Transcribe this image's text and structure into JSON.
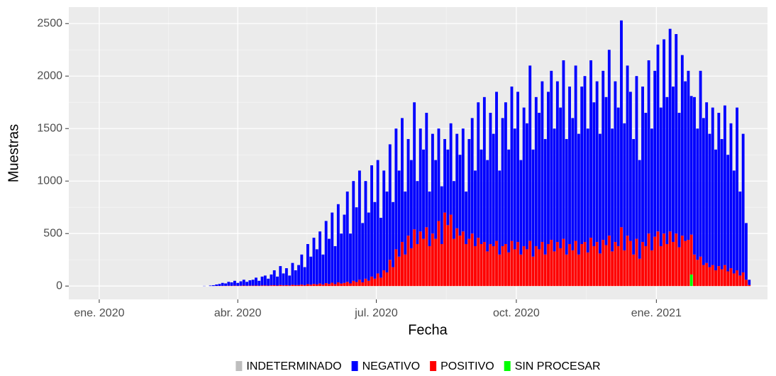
{
  "chart_data": {
    "type": "stacked-bar",
    "x_label": "Fecha",
    "y_label": "Muestras",
    "xlim": [
      "2019-12-12",
      "2021-03-15"
    ],
    "xticks": [
      {
        "value": "2020-01-01",
        "label": "ene. 2020"
      },
      {
        "value": "2020-04-01",
        "label": "abr. 2020"
      },
      {
        "value": "2020-07-01",
        "label": "jul. 2020"
      },
      {
        "value": "2020-10-01",
        "label": "oct. 2020"
      },
      {
        "value": "2021-01-01",
        "label": "ene. 2021"
      }
    ],
    "ylim": [
      -127,
      2657
    ],
    "yticks": [
      0,
      500,
      1000,
      1500,
      2000,
      2500
    ],
    "grid": true,
    "legend": "bottom",
    "x": [
      "2020-03-10",
      "2020-03-12",
      "2020-03-14",
      "2020-03-16",
      "2020-03-18",
      "2020-03-20",
      "2020-03-22",
      "2020-03-24",
      "2020-03-26",
      "2020-03-28",
      "2020-03-30",
      "2020-04-01",
      "2020-04-03",
      "2020-04-05",
      "2020-04-07",
      "2020-04-09",
      "2020-04-11",
      "2020-04-13",
      "2020-04-15",
      "2020-04-17",
      "2020-04-19",
      "2020-04-21",
      "2020-04-23",
      "2020-04-25",
      "2020-04-27",
      "2020-04-29",
      "2020-05-01",
      "2020-05-03",
      "2020-05-05",
      "2020-05-07",
      "2020-05-09",
      "2020-05-11",
      "2020-05-13",
      "2020-05-15",
      "2020-05-17",
      "2020-05-19",
      "2020-05-21",
      "2020-05-23",
      "2020-05-25",
      "2020-05-27",
      "2020-05-29",
      "2020-05-31",
      "2020-06-02",
      "2020-06-04",
      "2020-06-06",
      "2020-06-08",
      "2020-06-10",
      "2020-06-12",
      "2020-06-14",
      "2020-06-16",
      "2020-06-18",
      "2020-06-20",
      "2020-06-22",
      "2020-06-24",
      "2020-06-26",
      "2020-06-28",
      "2020-06-30",
      "2020-07-02",
      "2020-07-04",
      "2020-07-06",
      "2020-07-08",
      "2020-07-10",
      "2020-07-12",
      "2020-07-14",
      "2020-07-16",
      "2020-07-18",
      "2020-07-20",
      "2020-07-22",
      "2020-07-24",
      "2020-07-26",
      "2020-07-28",
      "2020-07-30",
      "2020-08-01",
      "2020-08-03",
      "2020-08-05",
      "2020-08-07",
      "2020-08-09",
      "2020-08-11",
      "2020-08-13",
      "2020-08-15",
      "2020-08-17",
      "2020-08-19",
      "2020-08-21",
      "2020-08-23",
      "2020-08-25",
      "2020-08-27",
      "2020-08-29",
      "2020-08-31",
      "2020-09-02",
      "2020-09-04",
      "2020-09-06",
      "2020-09-08",
      "2020-09-10",
      "2020-09-12",
      "2020-09-14",
      "2020-09-16",
      "2020-09-18",
      "2020-09-20",
      "2020-09-22",
      "2020-09-24",
      "2020-09-26",
      "2020-09-28",
      "2020-09-30",
      "2020-10-02",
      "2020-10-04",
      "2020-10-06",
      "2020-10-08",
      "2020-10-10",
      "2020-10-12",
      "2020-10-14",
      "2020-10-16",
      "2020-10-18",
      "2020-10-20",
      "2020-10-22",
      "2020-10-24",
      "2020-10-26",
      "2020-10-28",
      "2020-10-30",
      "2020-11-01",
      "2020-11-03",
      "2020-11-05",
      "2020-11-07",
      "2020-11-09",
      "2020-11-11",
      "2020-11-13",
      "2020-11-15",
      "2020-11-17",
      "2020-11-19",
      "2020-11-21",
      "2020-11-23",
      "2020-11-25",
      "2020-11-27",
      "2020-11-29",
      "2020-12-01",
      "2020-12-03",
      "2020-12-05",
      "2020-12-07",
      "2020-12-09",
      "2020-12-11",
      "2020-12-13",
      "2020-12-15",
      "2020-12-17",
      "2020-12-19",
      "2020-12-21",
      "2020-12-23",
      "2020-12-25",
      "2020-12-27",
      "2020-12-29",
      "2020-12-31",
      "2021-01-02",
      "2021-01-04",
      "2021-01-06",
      "2021-01-08",
      "2021-01-10",
      "2021-01-12",
      "2021-01-14",
      "2021-01-16",
      "2021-01-18",
      "2021-01-20",
      "2021-01-22",
      "2021-01-24",
      "2021-01-26",
      "2021-01-28",
      "2021-01-30",
      "2021-02-01",
      "2021-02-03",
      "2021-02-05",
      "2021-02-07",
      "2021-02-09",
      "2021-02-11",
      "2021-02-13",
      "2021-02-15",
      "2021-02-17",
      "2021-02-19",
      "2021-02-21",
      "2021-02-23",
      "2021-02-25",
      "2021-02-27",
      "2021-03-01",
      "2021-03-03"
    ],
    "series": [
      {
        "name": "INDETERMINADO",
        "color": "#bebebe",
        "values": [
          0,
          0,
          0,
          0,
          0,
          0,
          0,
          0,
          0,
          0,
          0,
          0,
          0,
          0,
          0,
          0,
          0,
          0,
          0,
          0,
          0,
          0,
          0,
          0,
          0,
          0,
          0,
          0,
          0,
          0,
          0,
          0,
          0,
          0,
          0,
          0,
          0,
          0,
          0,
          0,
          0,
          0,
          0,
          0,
          0,
          0,
          0,
          0,
          0,
          0,
          0,
          0,
          0,
          0,
          0,
          0,
          0,
          0,
          0,
          0,
          0,
          0,
          0,
          0,
          0,
          0,
          0,
          0,
          0,
          0,
          0,
          0,
          0,
          0,
          0,
          0,
          0,
          0,
          0,
          0,
          0,
          0,
          0,
          0,
          0,
          0,
          0,
          0,
          0,
          0,
          0,
          0,
          0,
          0,
          0,
          0,
          0,
          0,
          0,
          0,
          0,
          0,
          0,
          0,
          0,
          0,
          0,
          0,
          0,
          0,
          0,
          0,
          0,
          0,
          0,
          0,
          0,
          0,
          0,
          0,
          0,
          0,
          0,
          0,
          0,
          0,
          0,
          0,
          0,
          0,
          0,
          0,
          0,
          0,
          0,
          0,
          0,
          0,
          0,
          0,
          0,
          0,
          0,
          0,
          0,
          0,
          0,
          0,
          0,
          0,
          0,
          0,
          0,
          0,
          0,
          0,
          0,
          0,
          0,
          0,
          0,
          0,
          0,
          0,
          0,
          0,
          0,
          0,
          0,
          0,
          0,
          0,
          0,
          0,
          0,
          0,
          0,
          0,
          0,
          0
        ]
      },
      {
        "name": "NEGATIVO",
        "color": "#0000ff",
        "values": [
          2,
          0,
          5,
          8,
          14,
          19,
          28,
          23,
          37,
          33,
          46,
          28,
          42,
          55,
          37,
          51,
          56,
          75,
          47,
          84,
          94,
          66,
          103,
          142,
          85,
          180,
          113,
          161,
          94,
          208,
          141,
          190,
          286,
          171,
          382,
          267,
          440,
          335,
          496,
          286,
          592,
          430,
          668,
          362,
          745,
          476,
          650,
          860,
          475,
          950,
          712,
          1040,
          565,
          930,
          650,
          1060,
          730,
          1080,
          570,
          950,
          770,
          1100,
          620,
          1150,
          820,
          1180,
          600,
          920,
          840,
          1210,
          600,
          980,
          850,
          1090,
          520,
          950,
          750,
          880,
          550,
          700,
          720,
          870,
          550,
          900,
          770,
          980,
          500,
          950,
          1100,
          720,
          1290,
          900,
          1380,
          870,
          1250,
          1070,
          1420,
          800,
          1220,
          1350,
          980,
          1470,
          1150,
          1430,
          900,
          1320,
          1200,
          1670,
          1020,
          1420,
          1300,
          1530,
          1100,
          1450,
          1610,
          1170,
          1530,
          1340,
          1700,
          1100,
          1500,
          1260,
          1670,
          1150,
          1500,
          1580,
          1180,
          1690,
          1370,
          1530,
          1140,
          1610,
          1410,
          1770,
          1170,
          1530,
          1320,
          1970,
          1210,
          1620,
          1420,
          1100,
          1550,
          940,
          1480,
          1270,
          1650,
          1160,
          1580,
          1780,
          1320,
          1850,
          1400,
          1930,
          1480,
          1900,
          1280,
          1720,
          1520,
          1610,
          1320,
          1500,
          1250,
          1770,
          1400,
          1530,
          1270,
          1500,
          1150,
          1460,
          1240,
          1520,
          1110,
          1380,
          980,
          1550,
          800,
          1320,
          540,
          50
        ]
      },
      {
        "name": "POSITIVO",
        "color": "#ff0000",
        "values": [
          0,
          0,
          0,
          0,
          1,
          1,
          2,
          2,
          3,
          2,
          4,
          2,
          3,
          5,
          3,
          4,
          4,
          5,
          3,
          6,
          6,
          4,
          7,
          8,
          5,
          10,
          7,
          9,
          6,
          12,
          9,
          10,
          14,
          9,
          18,
          13,
          20,
          15,
          24,
          14,
          28,
          20,
          32,
          18,
          35,
          24,
          30,
          40,
          25,
          50,
          38,
          60,
          35,
          70,
          50,
          90,
          70,
          120,
          80,
          150,
          130,
          250,
          180,
          350,
          280,
          420,
          300,
          480,
          360,
          540,
          400,
          520,
          450,
          560,
          380,
          500,
          450,
          620,
          400,
          700,
          580,
          680,
          450,
          550,
          480,
          520,
          400,
          450,
          500,
          380,
          460,
          400,
          420,
          330,
          400,
          380,
          430,
          300,
          380,
          400,
          320,
          430,
          350,
          420,
          300,
          380,
          350,
          430,
          280,
          380,
          350,
          420,
          300,
          400,
          440,
          330,
          420,
          360,
          450,
          300,
          400,
          340,
          430,
          300,
          400,
          420,
          320,
          460,
          380,
          420,
          310,
          440,
          390,
          480,
          330,
          420,
          380,
          560,
          340,
          480,
          430,
          300,
          450,
          260,
          420,
          380,
          500,
          340,
          470,
          520,
          380,
          500,
          400,
          520,
          420,
          500,
          370,
          480,
          430,
          440,
          380,
          300,
          250,
          280,
          200,
          220,
          180,
          200,
          150,
          190,
          160,
          200,
          140,
          170,
          120,
          150,
          100,
          130,
          60,
          10
        ]
      },
      {
        "name": "SIN PROCESAR",
        "color": "#00ff00",
        "values": [
          0,
          0,
          0,
          0,
          0,
          0,
          0,
          0,
          0,
          0,
          0,
          0,
          0,
          0,
          0,
          0,
          0,
          0,
          0,
          0,
          0,
          0,
          0,
          0,
          0,
          0,
          0,
          0,
          0,
          0,
          0,
          0,
          0,
          0,
          0,
          0,
          0,
          0,
          0,
          0,
          0,
          0,
          0,
          0,
          0,
          0,
          0,
          0,
          0,
          0,
          0,
          0,
          0,
          0,
          0,
          0,
          0,
          0,
          0,
          0,
          0,
          0,
          0,
          0,
          0,
          0,
          0,
          0,
          0,
          0,
          0,
          0,
          0,
          0,
          0,
          0,
          0,
          0,
          0,
          0,
          0,
          0,
          0,
          0,
          0,
          0,
          0,
          0,
          0,
          0,
          0,
          0,
          0,
          0,
          0,
          0,
          0,
          0,
          0,
          0,
          0,
          0,
          0,
          0,
          0,
          0,
          0,
          0,
          0,
          0,
          0,
          0,
          0,
          0,
          0,
          0,
          0,
          0,
          0,
          0,
          0,
          0,
          0,
          0,
          0,
          0,
          0,
          0,
          0,
          0,
          0,
          0,
          0,
          0,
          0,
          0,
          0,
          0,
          0,
          0,
          0,
          0,
          0,
          0,
          0,
          0,
          0,
          0,
          0,
          0,
          0,
          0,
          0,
          0,
          0,
          0,
          0,
          0,
          0,
          0,
          110,
          0,
          0,
          0,
          0,
          0,
          0,
          0,
          0,
          0,
          0,
          0,
          0,
          0,
          0,
          0,
          0,
          0,
          0,
          0
        ]
      }
    ]
  }
}
